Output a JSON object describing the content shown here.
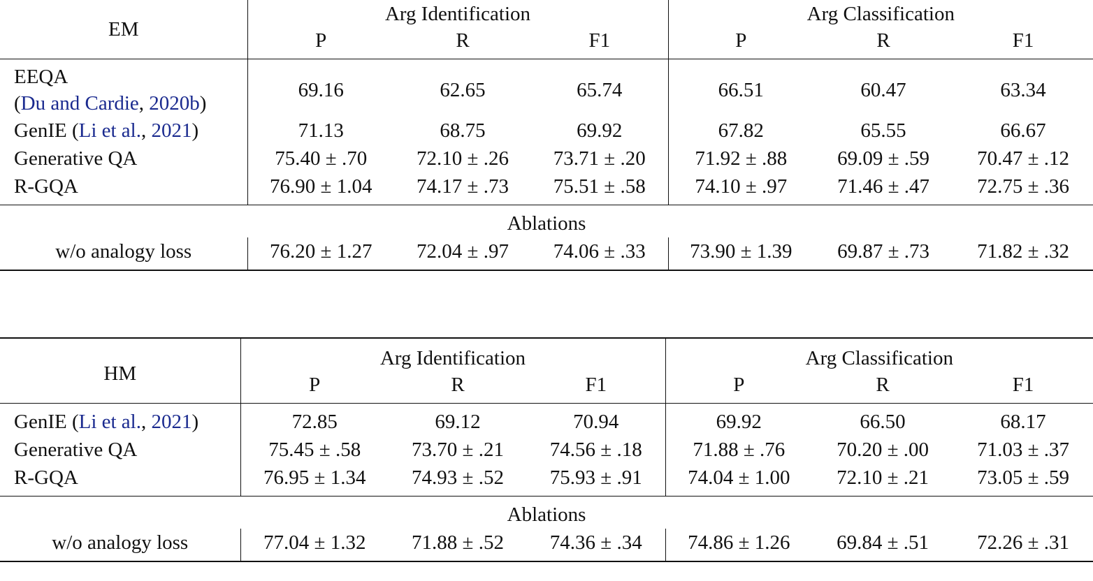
{
  "tables": [
    {
      "metric": "EM",
      "group_headers": [
        "Arg Identification",
        "Arg Classification"
      ],
      "sub_headers": [
        "P",
        "R",
        "F1",
        "P",
        "R",
        "F1"
      ],
      "rows": [
        {
          "model": "EEQA",
          "cite_pre": "(",
          "cite_link": "Du and Cardie",
          "cite_sep": ", ",
          "cite_year": "2020b",
          "cite_post": ")",
          "values": [
            "69.16",
            "62.65",
            "65.74",
            "66.51",
            "60.47",
            "63.34"
          ]
        },
        {
          "model": "GenIE ",
          "cite_pre": "(",
          "cite_link": "Li et al.",
          "cite_sep": ", ",
          "cite_year": "2021",
          "cite_post": ")",
          "values": [
            "71.13",
            "68.75",
            "69.92",
            "67.82",
            "65.55",
            "66.67"
          ]
        },
        {
          "model": "Generative QA",
          "values": [
            "75.40 ± .70",
            "72.10 ± .26",
            "73.71 ± .20",
            "71.92 ± .88",
            "69.09 ± .59",
            "70.47 ± .12"
          ]
        },
        {
          "model": "R-GQA",
          "values": [
            "76.90 ± 1.04",
            "74.17 ± .73",
            "75.51 ± .58",
            "74.10 ± .97",
            "71.46 ± .47",
            "72.75 ± .36"
          ]
        }
      ],
      "ablation_title": "Ablations",
      "ablation_rows": [
        {
          "model": "w/o analogy loss",
          "values": [
            "76.20 ± 1.27",
            "72.04 ± .97",
            "74.06 ± .33",
            "73.90 ± 1.39",
            "69.87 ± .73",
            "71.82 ± .32"
          ]
        }
      ]
    },
    {
      "metric": "HM",
      "group_headers": [
        "Arg Identification",
        "Arg Classification"
      ],
      "sub_headers": [
        "P",
        "R",
        "F1",
        "P",
        "R",
        "F1"
      ],
      "rows": [
        {
          "model": "GenIE ",
          "cite_pre": "(",
          "cite_link": "Li et al.",
          "cite_sep": ", ",
          "cite_year": "2021",
          "cite_post": ")",
          "values": [
            "72.85",
            "69.12",
            "70.94",
            "69.92",
            "66.50",
            "68.17"
          ]
        },
        {
          "model": "Generative QA",
          "values": [
            "75.45 ± .58",
            "73.70 ± .21",
            "74.56 ± .18",
            "71.88 ± .76",
            "70.20 ± .00",
            "71.03 ± .37"
          ]
        },
        {
          "model": "R-GQA",
          "values": [
            "76.95 ± 1.34",
            "74.93 ± .52",
            "75.93 ± .91",
            "74.04 ± 1.00",
            "72.10 ± .21",
            "73.05 ± .59"
          ]
        }
      ],
      "ablation_title": "Ablations",
      "ablation_rows": [
        {
          "model": "w/o analogy loss",
          "values": [
            "77.04 ± 1.32",
            "71.88 ± .52",
            "74.36 ± .34",
            "74.86 ± 1.26",
            "69.84 ± .51",
            "72.26 ± .31"
          ]
        }
      ]
    }
  ]
}
